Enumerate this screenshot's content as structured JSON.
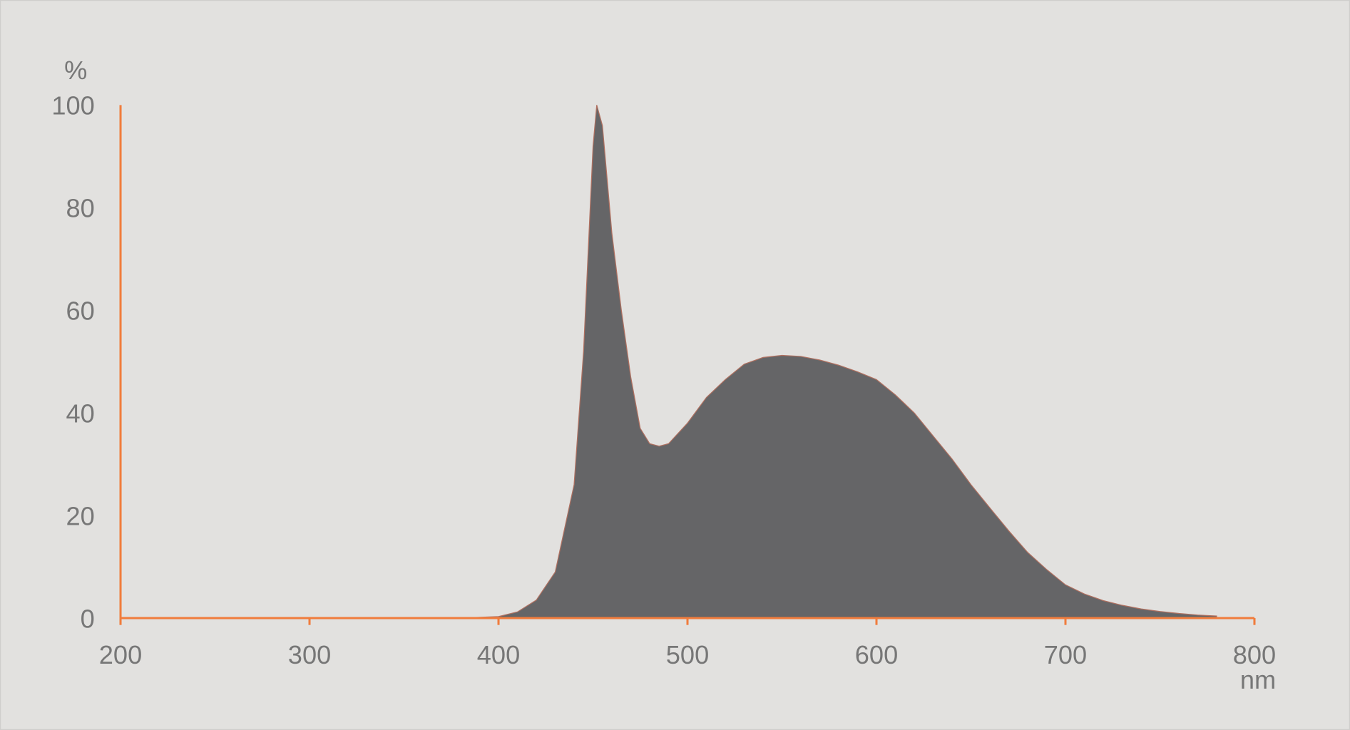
{
  "chart_data": {
    "type": "area",
    "title": "",
    "xlabel": "nm",
    "ylabel": "%",
    "xlim": [
      200,
      800
    ],
    "ylim": [
      0,
      100
    ],
    "xticks": [
      200,
      300,
      400,
      500,
      600,
      700,
      800
    ],
    "yticks": [
      0,
      20,
      40,
      60,
      80,
      100
    ],
    "grid": false,
    "colors": {
      "fill": "#656567",
      "axis": "#f07c3c",
      "background": "#e2e1df",
      "text": "#777777"
    },
    "x": [
      380,
      400,
      410,
      420,
      430,
      440,
      445,
      450,
      452,
      455,
      460,
      465,
      470,
      475,
      480,
      485,
      490,
      500,
      510,
      520,
      530,
      540,
      550,
      560,
      570,
      580,
      590,
      600,
      610,
      620,
      630,
      640,
      650,
      660,
      670,
      680,
      690,
      700,
      710,
      720,
      730,
      740,
      750,
      760,
      770,
      780
    ],
    "y": [
      0,
      0.3,
      1.2,
      3.5,
      9,
      26,
      52,
      92,
      100,
      96,
      75,
      60,
      47,
      37,
      34,
      33.5,
      34,
      38,
      43,
      46.5,
      49.5,
      50.8,
      51.2,
      51,
      50.3,
      49.3,
      48,
      46.5,
      43.5,
      40,
      35.5,
      31,
      26,
      21.5,
      17,
      12.8,
      9.5,
      6.5,
      4.7,
      3.4,
      2.5,
      1.8,
      1.3,
      0.9,
      0.6,
      0.4
    ]
  }
}
